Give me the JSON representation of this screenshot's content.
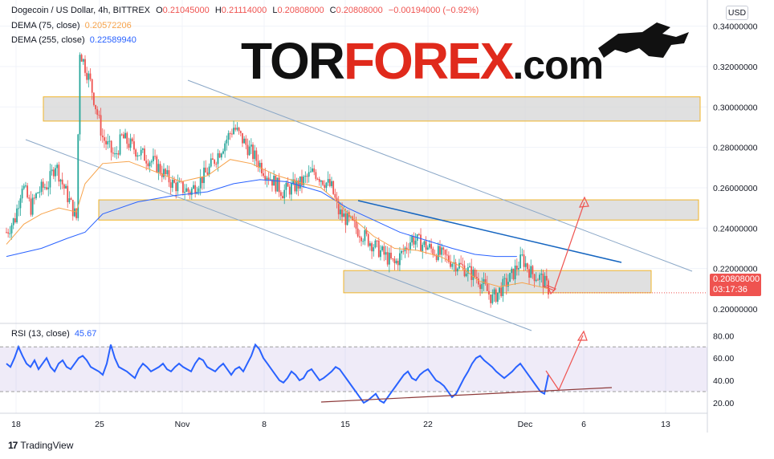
{
  "header": {
    "symbol_line": "Dogecoin / US Dollar, 4h, BITTREX",
    "o_label": "O",
    "o_value": "0.21045000",
    "h_label": "H",
    "h_value": "0.21114000",
    "l_label": "L",
    "l_value": "0.20808000",
    "c_label": "C",
    "c_value": "0.20808000",
    "change": "−0.00194000 (−0.92%)",
    "dema75_label": "DEMA (75, close)",
    "dema75_value": "0.20572206",
    "dema255_label": "DEMA (255, close)",
    "dema255_value": "0.22589940",
    "rsi_label": "RSI (13, close)",
    "rsi_value": "45.67"
  },
  "currency": "USD",
  "brand": {
    "part1": "TOR",
    "part2": "FOREX",
    "part3": ".com"
  },
  "last_price": {
    "value": "0.20808000",
    "countdown": "03:17:36"
  },
  "footer": {
    "logo_mark": "17",
    "logo_text": "TradingView"
  },
  "colors": {
    "up": "#26a69a",
    "down": "#ef5350",
    "dema75": "#f7a34b",
    "dema255": "#2962ff",
    "rsi": "#2962ff",
    "zone_fill": "#d6d6d6",
    "zone_border": "#f0b429",
    "channel": "#8aa7c7",
    "trendline": "#1565c0",
    "arrow": "#ef5350"
  },
  "chart_data": [
    {
      "type": "candlestick",
      "title": "Dogecoin / US Dollar, 4h, BITTREX",
      "x_ticks": [
        "18",
        "25",
        "Nov",
        "8",
        "15",
        "22",
        "Dec",
        "6",
        "13"
      ],
      "y_ticks": [
        "0.34000000",
        "0.32000000",
        "0.30000000",
        "0.28000000",
        "0.26000000",
        "0.24000000",
        "0.22000000"
      ],
      "ylim": [
        0.2,
        0.345
      ],
      "price_path": [
        [
          0.238,
          0
        ],
        [
          0.245,
          5
        ],
        [
          0.262,
          9
        ],
        [
          0.25,
          14
        ],
        [
          0.258,
          18
        ],
        [
          0.262,
          24
        ],
        [
          0.272,
          28
        ],
        [
          0.262,
          32
        ],
        [
          0.245,
          40
        ],
        [
          0.328,
          42
        ],
        [
          0.312,
          48
        ],
        [
          0.285,
          55
        ],
        [
          0.275,
          62
        ],
        [
          0.285,
          66
        ],
        [
          0.278,
          75
        ],
        [
          0.272,
          85
        ],
        [
          0.262,
          95
        ],
        [
          0.258,
          105
        ],
        [
          0.268,
          115
        ],
        [
          0.29,
          130
        ],
        [
          0.28,
          138
        ],
        [
          0.268,
          148
        ],
        [
          0.258,
          158
        ],
        [
          0.262,
          168
        ],
        [
          0.268,
          176
        ],
        [
          0.26,
          186
        ],
        [
          0.248,
          190
        ],
        [
          0.24,
          200
        ],
        [
          0.23,
          212
        ],
        [
          0.222,
          222
        ],
        [
          0.235,
          232
        ],
        [
          0.23,
          242
        ],
        [
          0.225,
          252
        ],
        [
          0.22,
          262
        ],
        [
          0.215,
          270
        ],
        [
          0.205,
          278
        ],
        [
          0.215,
          288
        ],
        [
          0.225,
          295
        ],
        [
          0.218,
          300
        ],
        [
          0.215,
          306
        ],
        [
          0.21,
          310
        ]
      ],
      "dema75_path": [
        [
          0.232,
          0
        ],
        [
          0.242,
          10
        ],
        [
          0.247,
          20
        ],
        [
          0.25,
          30
        ],
        [
          0.248,
          40
        ],
        [
          0.262,
          45
        ],
        [
          0.272,
          55
        ],
        [
          0.273,
          70
        ],
        [
          0.268,
          85
        ],
        [
          0.263,
          100
        ],
        [
          0.266,
          115
        ],
        [
          0.274,
          128
        ],
        [
          0.272,
          140
        ],
        [
          0.266,
          155
        ],
        [
          0.262,
          170
        ],
        [
          0.26,
          180
        ],
        [
          0.254,
          188
        ],
        [
          0.245,
          198
        ],
        [
          0.236,
          210
        ],
        [
          0.23,
          222
        ],
        [
          0.229,
          235
        ],
        [
          0.226,
          248
        ],
        [
          0.221,
          260
        ],
        [
          0.214,
          270
        ],
        [
          0.211,
          282
        ],
        [
          0.213,
          295
        ],
        [
          0.211,
          305
        ],
        [
          0.21,
          310
        ]
      ],
      "dema255_path": [
        [
          0.226,
          0
        ],
        [
          0.23,
          20
        ],
        [
          0.235,
          35
        ],
        [
          0.238,
          45
        ],
        [
          0.247,
          55
        ],
        [
          0.253,
          75
        ],
        [
          0.256,
          95
        ],
        [
          0.258,
          115
        ],
        [
          0.262,
          130
        ],
        [
          0.264,
          145
        ],
        [
          0.263,
          160
        ],
        [
          0.258,
          180
        ],
        [
          0.25,
          195
        ],
        [
          0.244,
          210
        ],
        [
          0.238,
          225
        ],
        [
          0.234,
          240
        ],
        [
          0.23,
          255
        ],
        [
          0.227,
          268
        ],
        [
          0.226,
          280
        ],
        [
          0.226,
          292
        ]
      ],
      "zones": [
        {
          "from": 0.293,
          "to": 0.305
        },
        {
          "from": 0.244,
          "to": 0.254
        },
        {
          "from": 0.208,
          "to": 0.219
        }
      ]
    },
    {
      "type": "line",
      "title": "RSI (13, close)",
      "y_ticks": [
        "80.00",
        "60.00",
        "40.00",
        "20.00"
      ],
      "ylim": [
        12,
        86
      ],
      "bands": [
        30,
        70
      ],
      "values": [
        55,
        52,
        60,
        70,
        62,
        55,
        52,
        58,
        50,
        55,
        60,
        52,
        48,
        55,
        58,
        52,
        50,
        55,
        60,
        62,
        58,
        52,
        50,
        48,
        45,
        55,
        72,
        60,
        52,
        50,
        48,
        45,
        42,
        50,
        55,
        52,
        48,
        50,
        52,
        55,
        50,
        48,
        52,
        55,
        52,
        50,
        48,
        55,
        60,
        58,
        52,
        50,
        48,
        52,
        55,
        50,
        45,
        50,
        52,
        48,
        55,
        62,
        72,
        68,
        60,
        55,
        50,
        45,
        40,
        38,
        42,
        48,
        45,
        40,
        42,
        48,
        50,
        45,
        40,
        42,
        45,
        48,
        52,
        50,
        45,
        40,
        35,
        30,
        25,
        20,
        22,
        25,
        28,
        22,
        20,
        25,
        30,
        35,
        40,
        45,
        48,
        42,
        40,
        45,
        48,
        50,
        45,
        40,
        38,
        35,
        30,
        25,
        28,
        35,
        42,
        48,
        55,
        60,
        62,
        58,
        55,
        52,
        48,
        45,
        42,
        45,
        48,
        52,
        55,
        50,
        45,
        40,
        35,
        30,
        28,
        45
      ]
    }
  ],
  "price_label_axis": "0.20000000"
}
